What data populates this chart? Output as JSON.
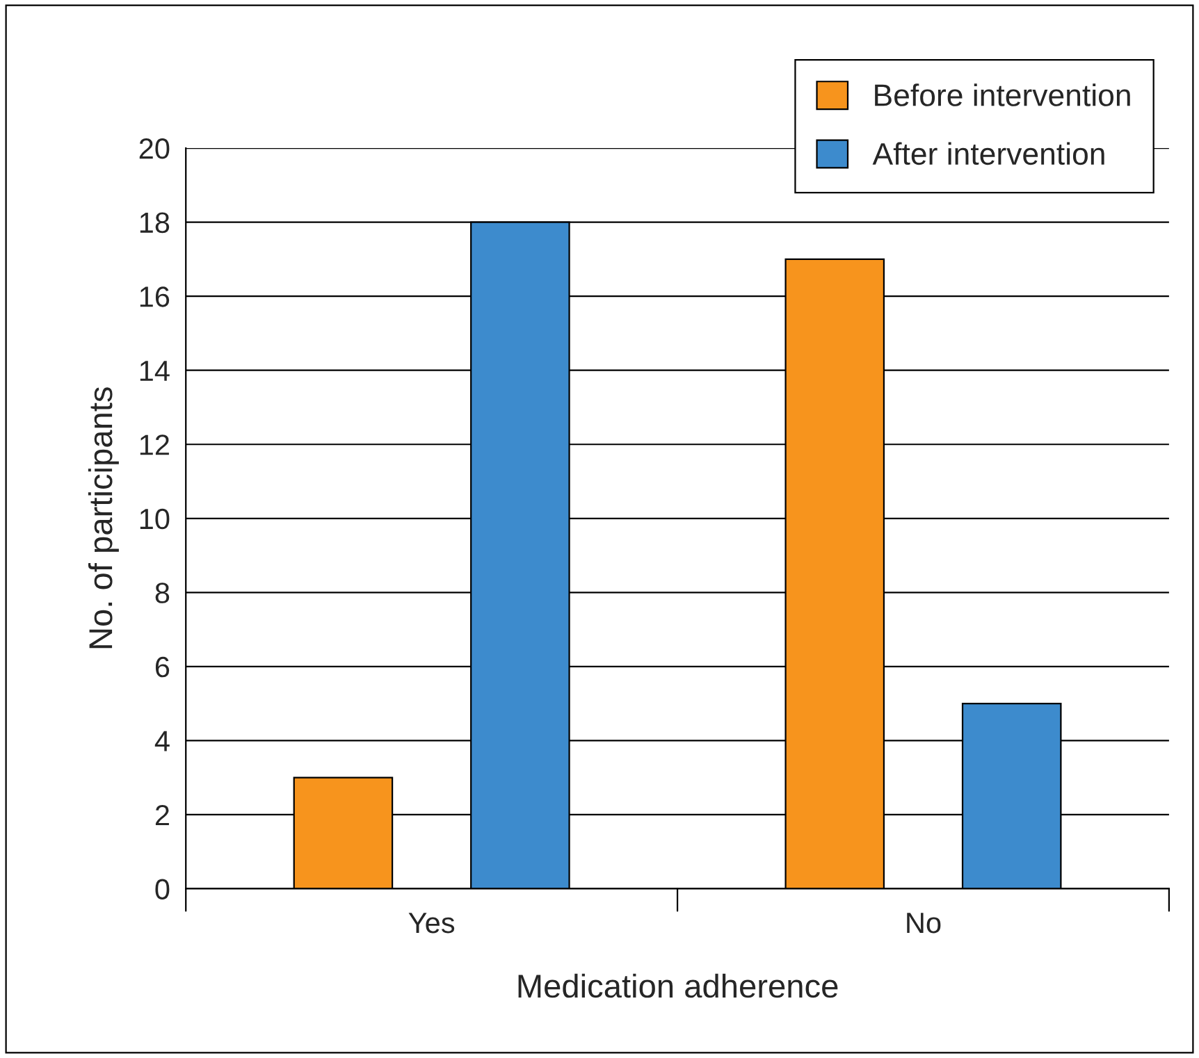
{
  "chart_data": {
    "type": "bar",
    "categories": [
      "Yes",
      "No"
    ],
    "series": [
      {
        "name": "Before intervention",
        "color": "#f7941d",
        "values": [
          3,
          17
        ]
      },
      {
        "name": "After intervention",
        "color": "#3d8bcd",
        "values": [
          18,
          5
        ]
      }
    ],
    "xlabel": "Medication adherence",
    "ylabel": "No. of participants",
    "ylim": [
      0,
      20
    ],
    "yticks": [
      0,
      2,
      4,
      6,
      8,
      10,
      12,
      14,
      16,
      18,
      20
    ],
    "grid": "y",
    "legend": "top right"
  }
}
